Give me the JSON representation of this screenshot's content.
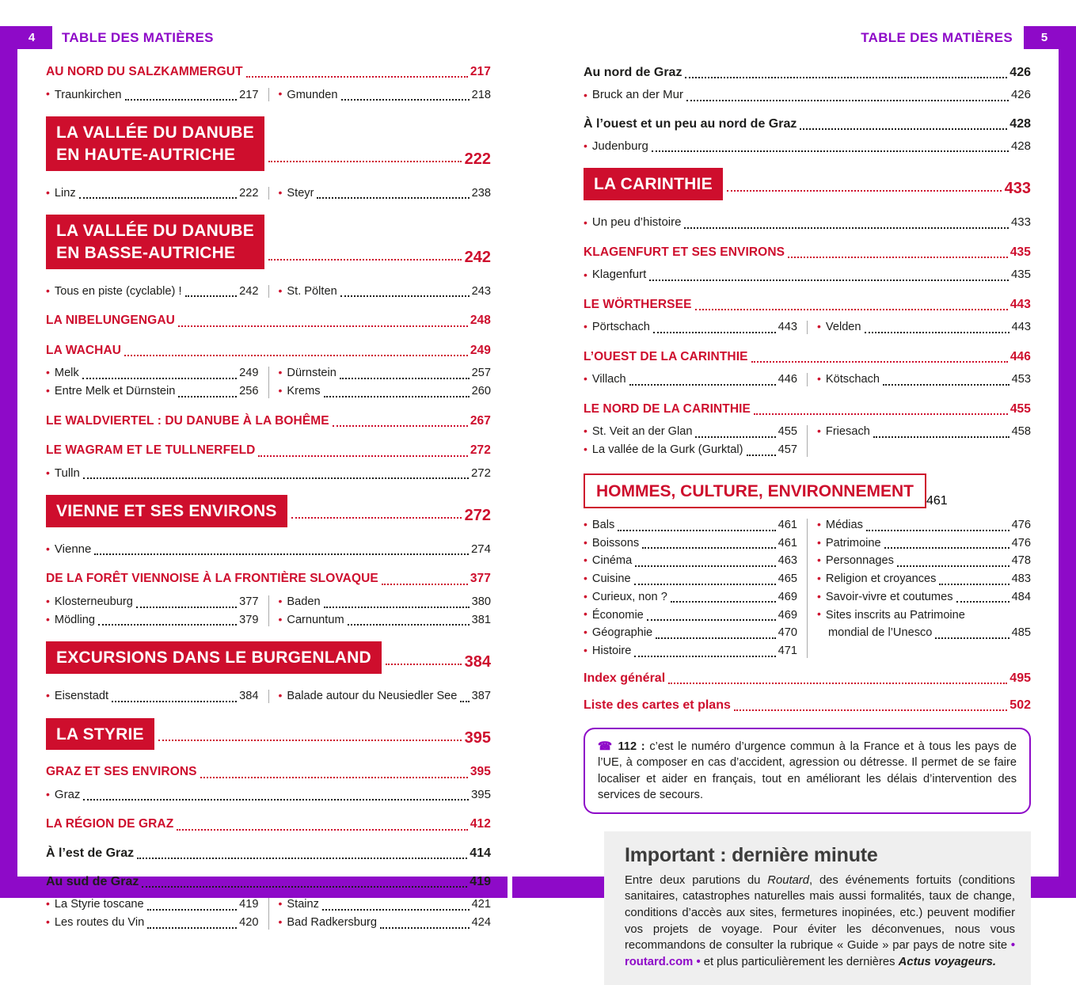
{
  "document": {
    "type": "book-table-of-contents-spread"
  },
  "colors": {
    "purple": "#8E0AC8",
    "red": "#CE0E2D",
    "text": "#1D1D1B",
    "graybox": "#EFEFEF",
    "divider": "#ABABAB"
  },
  "pages": [
    {
      "page_num": "4",
      "header": "TABLE DES MATIÈRES",
      "blocks": [
        {
          "t": "caps",
          "label": "AU NORD DU SALZKAMMERGUT",
          "page": "217"
        },
        {
          "t": "cols",
          "left": [
            {
              "label": "Traunkirchen",
              "page": "217"
            }
          ],
          "right": [
            {
              "label": "Gmunden",
              "page": "218"
            }
          ]
        },
        {
          "t": "banner",
          "lines": [
            "LA VALLÉE DU DANUBE",
            "EN HAUTE-AUTRICHE"
          ],
          "page": "222"
        },
        {
          "t": "cols",
          "left": [
            {
              "label": "Linz",
              "page": "222"
            }
          ],
          "right": [
            {
              "label": "Steyr",
              "page": "238"
            }
          ]
        },
        {
          "t": "banner",
          "lines": [
            "LA VALLÉE DU DANUBE",
            "EN BASSE-AUTRICHE"
          ],
          "page": "242"
        },
        {
          "t": "cols",
          "left": [
            {
              "label": "Tous en piste (cyclable) !",
              "page": "242"
            }
          ],
          "right": [
            {
              "label": "St. Pölten",
              "page": "243"
            }
          ]
        },
        {
          "t": "caps",
          "label": "LA NIBELUNGENGAU",
          "page": "248"
        },
        {
          "t": "caps",
          "label": "LA WACHAU",
          "page": "249"
        },
        {
          "t": "cols",
          "left": [
            {
              "label": "Melk",
              "page": "249"
            },
            {
              "label": "Entre Melk et Dürnstein",
              "page": "256"
            }
          ],
          "right": [
            {
              "label": "Dürnstein",
              "page": "257"
            },
            {
              "label": "Krems",
              "page": "260"
            }
          ]
        },
        {
          "t": "caps",
          "label": "LE WALDVIERTEL : DU DANUBE À LA BOHÊME",
          "page": "267"
        },
        {
          "t": "caps",
          "label": "LE WAGRAM ET LE TULLNERFELD",
          "page": "272"
        },
        {
          "t": "bullet",
          "label": "Tulln",
          "page": "272"
        },
        {
          "t": "banner",
          "lines": [
            "VIENNE ET SES ENVIRONS"
          ],
          "page": "272"
        },
        {
          "t": "bullet",
          "label": "Vienne",
          "page": "274"
        },
        {
          "t": "caps",
          "label": "DE LA FORÊT VIENNOISE À LA FRONTIÈRE SLOVAQUE",
          "page": "377"
        },
        {
          "t": "cols",
          "left": [
            {
              "label": "Klosterneuburg",
              "page": "377"
            },
            {
              "label": "Mödling",
              "page": "379"
            }
          ],
          "right": [
            {
              "label": "Baden",
              "page": "380"
            },
            {
              "label": "Carnuntum",
              "page": "381"
            }
          ]
        },
        {
          "t": "banner",
          "lines": [
            "EXCURSIONS DANS LE BURGENLAND"
          ],
          "page": "384"
        },
        {
          "t": "cols",
          "left": [
            {
              "label": "Eisenstadt",
              "page": "384"
            }
          ],
          "right": [
            {
              "label": "Balade autour du Neusiedler See",
              "page": "387"
            }
          ]
        },
        {
          "t": "banner",
          "lines": [
            "LA STYRIE"
          ],
          "page": "395"
        },
        {
          "t": "caps",
          "label": "GRAZ ET SES ENVIRONS",
          "page": "395"
        },
        {
          "t": "bullet",
          "label": "Graz",
          "page": "395"
        },
        {
          "t": "caps",
          "label": "LA RÉGION DE GRAZ",
          "page": "412"
        },
        {
          "t": "bold",
          "label": "À l’est de Graz",
          "page": "414"
        },
        {
          "t": "bold",
          "label": "Au sud de Graz",
          "page": "419"
        },
        {
          "t": "cols",
          "left": [
            {
              "label": "La Styrie toscane",
              "page": "419"
            },
            {
              "label": "Les routes du Vin",
              "page": "420"
            }
          ],
          "right": [
            {
              "label": "Stainz",
              "page": "421"
            },
            {
              "label": "Bad Radkersburg",
              "page": "424"
            }
          ]
        }
      ]
    },
    {
      "page_num": "5",
      "header": "TABLE DES MATIÈRES",
      "blocks": [
        {
          "t": "bold",
          "label": "Au nord de Graz",
          "page": "426"
        },
        {
          "t": "bullet",
          "label": "Bruck an der Mur",
          "page": "426"
        },
        {
          "t": "bold",
          "label": "À l’ouest et un peu au nord de Graz",
          "page": "428"
        },
        {
          "t": "bullet",
          "label": "Judenburg",
          "page": "428"
        },
        {
          "t": "banner",
          "lines": [
            "LA CARINTHIE"
          ],
          "page": "433"
        },
        {
          "t": "bullet",
          "label": "Un peu d’histoire",
          "page": "433"
        },
        {
          "t": "caps",
          "label": "KLAGENFURT ET SES ENVIRONS",
          "page": "435"
        },
        {
          "t": "bullet",
          "label": "Klagenfurt",
          "page": "435"
        },
        {
          "t": "caps",
          "label": "LE WÖRTHERSEE",
          "page": "443"
        },
        {
          "t": "cols",
          "left": [
            {
              "label": "Pörtschach",
              "page": "443"
            }
          ],
          "right": [
            {
              "label": "Velden",
              "page": "443"
            }
          ]
        },
        {
          "t": "caps",
          "label": "L’OUEST DE LA CARINTHIE",
          "page": "446"
        },
        {
          "t": "cols",
          "left": [
            {
              "label": "Villach",
              "page": "446"
            }
          ],
          "right": [
            {
              "label": "Kötschach",
              "page": "453"
            }
          ]
        },
        {
          "t": "caps",
          "label": "LE NORD DE LA CARINTHIE",
          "page": "455"
        },
        {
          "t": "cols",
          "left": [
            {
              "label": "St. Veit an der Glan",
              "page": "455"
            },
            {
              "label": "La vallée de la Gurk (Gurktal)",
              "page": "457"
            }
          ],
          "right": [
            {
              "label": "Friesach",
              "page": "458"
            }
          ]
        },
        {
          "t": "outline",
          "label": "HOMMES, CULTURE, ENVIRONNEMENT",
          "page": "461"
        },
        {
          "t": "cols",
          "left": [
            {
              "label": "Bals",
              "page": "461"
            },
            {
              "label": "Boissons",
              "page": "461"
            },
            {
              "label": "Cinéma",
              "page": "463"
            },
            {
              "label": "Cuisine",
              "page": "465"
            },
            {
              "label": "Curieux, non ?",
              "page": "469"
            },
            {
              "label": "Économie",
              "page": "469"
            },
            {
              "label": "Géographie",
              "page": "470"
            },
            {
              "label": "Histoire",
              "page": "471"
            }
          ],
          "right": [
            {
              "label": "Médias",
              "page": "476"
            },
            {
              "label": "Patrimoine",
              "page": "476"
            },
            {
              "label": "Personnages",
              "page": "478"
            },
            {
              "label": "Religion et croyances",
              "page": "483"
            },
            {
              "label": "Savoir-vivre et coutumes",
              "page": "484"
            },
            {
              "label": "Sites inscrits au Patrimoine",
              "page": null
            },
            {
              "label": "mondial de l’Unesco",
              "page": "485",
              "cont": true
            }
          ]
        },
        {
          "t": "redbold",
          "label": "Index général",
          "page": "495"
        },
        {
          "t": "redbold",
          "label": "Liste des cartes et plans",
          "page": "502"
        },
        {
          "t": "note",
          "segments": [
            {
              "style": "phone",
              "text": "☎"
            },
            {
              "style": "bold",
              "text": " 112 : "
            },
            {
              "style": "plain",
              "text": "c’est le numéro d’urgence commun à la France et à tous les pays de l’UE, à composer en cas d’accident, agression ou détresse. Il permet de se faire localiser et aider en français, tout en améliorant les délais d’intervention des services de secours."
            }
          ]
        },
        {
          "t": "graybox",
          "title": "Important : dernière minute",
          "segments": [
            {
              "style": "plain",
              "text": "Entre deux parutions du "
            },
            {
              "style": "italic",
              "text": "Routard"
            },
            {
              "style": "plain",
              "text": ", des événements fortuits (conditions sanitaires, catastrophes naturelles mais aussi formalités, taux de change, conditions d’accès aux sites, fermetures inopinées, etc.) peuvent modifier vos projets de voyage. Pour éviter les déconvenues, nous vous recommandons de consulter la rubrique « Guide » par pays de notre site "
            },
            {
              "style": "linkdot",
              "text": "• "
            },
            {
              "style": "link",
              "text": "routard.com"
            },
            {
              "style": "linkdot",
              "text": " •"
            },
            {
              "style": "plain",
              "text": " et plus particulièrement les dernières "
            },
            {
              "style": "bolditalic",
              "text": "Actus voyageurs."
            }
          ]
        }
      ]
    }
  ]
}
